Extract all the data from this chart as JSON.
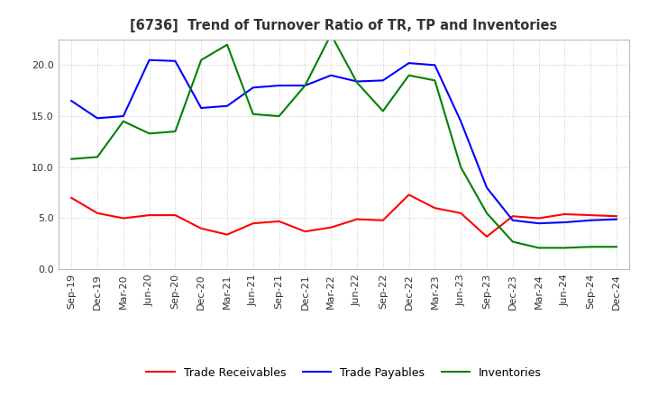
{
  "title": "[6736]  Trend of Turnover Ratio of TR, TP and Inventories",
  "x_labels": [
    "Sep-19",
    "Dec-19",
    "Mar-20",
    "Jun-20",
    "Sep-20",
    "Dec-20",
    "Mar-21",
    "Jun-21",
    "Sep-21",
    "Dec-21",
    "Mar-22",
    "Jun-22",
    "Sep-22",
    "Dec-22",
    "Mar-23",
    "Jun-23",
    "Sep-23",
    "Dec-23",
    "Mar-24",
    "Jun-24",
    "Sep-24",
    "Dec-24"
  ],
  "trade_receivables": [
    7.0,
    5.5,
    5.0,
    5.3,
    5.3,
    4.0,
    3.4,
    4.5,
    4.7,
    3.7,
    4.1,
    4.9,
    4.8,
    7.3,
    6.0,
    5.5,
    3.2,
    5.2,
    5.0,
    5.4,
    5.3,
    5.2
  ],
  "trade_payables": [
    16.5,
    14.8,
    15.0,
    20.5,
    20.4,
    15.8,
    16.0,
    17.8,
    18.0,
    18.0,
    19.0,
    18.4,
    18.5,
    20.2,
    20.0,
    14.5,
    8.0,
    4.8,
    4.5,
    4.6,
    4.8,
    4.9
  ],
  "inventories": [
    10.8,
    11.0,
    14.5,
    13.3,
    13.5,
    20.5,
    22.0,
    15.2,
    15.0,
    18.0,
    23.0,
    18.3,
    15.5,
    19.0,
    18.5,
    10.0,
    5.5,
    2.7,
    2.1,
    2.1,
    2.2,
    2.2
  ],
  "ylim": [
    0.0,
    22.5
  ],
  "yticks": [
    0.0,
    5.0,
    10.0,
    15.0,
    20.0
  ],
  "color_tr": "#ff0000",
  "color_tp": "#0000ff",
  "color_inv": "#008000",
  "legend_labels": [
    "Trade Receivables",
    "Trade Payables",
    "Inventories"
  ],
  "background_color": "#ffffff",
  "grid_color": "#999999",
  "title_color": "#333333"
}
